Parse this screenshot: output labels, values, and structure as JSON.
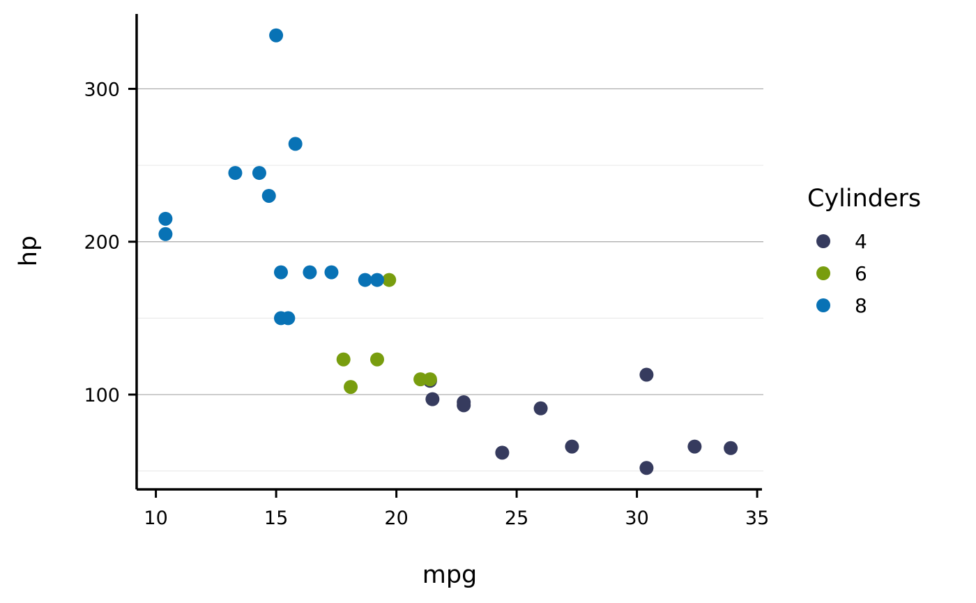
{
  "chart_data": {
    "type": "scatter",
    "xlabel": "mpg",
    "ylabel": "hp",
    "xlim": [
      9.2,
      35.2
    ],
    "ylim": [
      38,
      349
    ],
    "x_ticks": [
      10,
      15,
      20,
      25,
      30,
      35
    ],
    "y_ticks": [
      100,
      200,
      300
    ],
    "y_minor_grid": [
      50,
      150,
      250
    ],
    "grid": "horizontal",
    "legend": {
      "title": "Cylinders",
      "position": "right"
    },
    "series": [
      {
        "name": "4",
        "color": "#363b5e",
        "points": [
          [
            22.8,
            93
          ],
          [
            24.4,
            62
          ],
          [
            22.8,
            95
          ],
          [
            32.4,
            66
          ],
          [
            30.4,
            52
          ],
          [
            33.9,
            65
          ],
          [
            21.5,
            97
          ],
          [
            27.3,
            66
          ],
          [
            26.0,
            91
          ],
          [
            30.4,
            113
          ],
          [
            21.4,
            109
          ]
        ]
      },
      {
        "name": "6",
        "color": "#789d0e",
        "points": [
          [
            21.0,
            110
          ],
          [
            21.4,
            110
          ],
          [
            18.1,
            105
          ],
          [
            19.2,
            123
          ],
          [
            17.8,
            123
          ],
          [
            19.7,
            175
          ]
        ]
      },
      {
        "name": "8",
        "color": "#0872b5",
        "points": [
          [
            18.7,
            175
          ],
          [
            14.3,
            245
          ],
          [
            16.4,
            180
          ],
          [
            17.3,
            180
          ],
          [
            15.2,
            180
          ],
          [
            10.4,
            205
          ],
          [
            10.4,
            215
          ],
          [
            14.7,
            230
          ],
          [
            15.5,
            150
          ],
          [
            15.2,
            150
          ],
          [
            13.3,
            245
          ],
          [
            19.2,
            175
          ],
          [
            15.8,
            264
          ],
          [
            15.0,
            335
          ]
        ]
      }
    ]
  }
}
